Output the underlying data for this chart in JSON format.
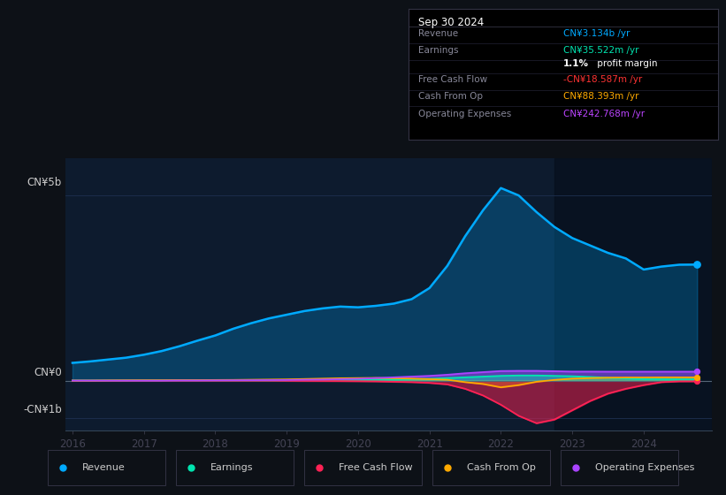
{
  "bg_color": "#0d1117",
  "chart_bg": "#0d1b2e",
  "grid_color": "#1e3050",
  "title_box": {
    "date": "Sep 30 2024",
    "rows": [
      {
        "label": "Revenue",
        "value": "CN¥3.134b /yr",
        "vcolor": "#00aaff"
      },
      {
        "label": "Earnings",
        "value": "CN¥35.522m /yr",
        "vcolor": "#00e5b0"
      },
      {
        "label": "",
        "value": "",
        "vcolor": "#ffffff"
      },
      {
        "label": "Free Cash Flow",
        "value": "-CN¥18.587m /yr",
        "vcolor": "#ff3333"
      },
      {
        "label": "Cash From Op",
        "value": "CN¥88.393m /yr",
        "vcolor": "#ffaa00"
      },
      {
        "label": "Operating Expenses",
        "value": "CN¥242.768m /yr",
        "vcolor": "#bb44ff"
      }
    ]
  },
  "x_years": [
    2016.0,
    2016.25,
    2016.5,
    2016.75,
    2017.0,
    2017.25,
    2017.5,
    2017.75,
    2018.0,
    2018.25,
    2018.5,
    2018.75,
    2019.0,
    2019.25,
    2019.5,
    2019.75,
    2020.0,
    2020.25,
    2020.5,
    2020.75,
    2021.0,
    2021.25,
    2021.5,
    2021.75,
    2022.0,
    2022.25,
    2022.5,
    2022.75,
    2023.0,
    2023.25,
    2023.5,
    2023.75,
    2024.0,
    2024.25,
    2024.5,
    2024.75
  ],
  "revenue": [
    0.48,
    0.52,
    0.57,
    0.62,
    0.7,
    0.8,
    0.93,
    1.08,
    1.22,
    1.4,
    1.55,
    1.68,
    1.78,
    1.88,
    1.95,
    2.0,
    1.98,
    2.02,
    2.08,
    2.2,
    2.5,
    3.1,
    3.9,
    4.6,
    5.2,
    5.0,
    4.55,
    4.15,
    3.85,
    3.65,
    3.45,
    3.3,
    3.0,
    3.08,
    3.13,
    3.134
  ],
  "earnings": [
    0.008,
    0.008,
    0.009,
    0.009,
    0.01,
    0.01,
    0.01,
    0.01,
    0.01,
    0.01,
    0.01,
    0.01,
    0.01,
    0.02,
    0.02,
    0.02,
    0.02,
    0.03,
    0.035,
    0.04,
    0.05,
    0.07,
    0.09,
    0.11,
    0.13,
    0.14,
    0.14,
    0.13,
    0.12,
    0.1,
    0.08,
    0.06,
    0.04,
    0.038,
    0.036,
    0.036
  ],
  "free_cash_flow": [
    0.0,
    0.0,
    0.0,
    0.0,
    0.0,
    0.0,
    0.0,
    0.0,
    0.0,
    0.0,
    0.0,
    0.0,
    -0.005,
    -0.008,
    -0.01,
    -0.012,
    -0.015,
    -0.02,
    -0.03,
    -0.04,
    -0.06,
    -0.1,
    -0.22,
    -0.4,
    -0.65,
    -0.95,
    -1.15,
    -1.05,
    -0.8,
    -0.55,
    -0.35,
    -0.22,
    -0.12,
    -0.04,
    -0.02,
    -0.019
  ],
  "cash_from_op": [
    0.0,
    0.0,
    0.005,
    0.008,
    0.01,
    0.01,
    0.015,
    0.015,
    0.018,
    0.02,
    0.025,
    0.03,
    0.035,
    0.045,
    0.055,
    0.065,
    0.07,
    0.075,
    0.065,
    0.055,
    0.04,
    0.025,
    -0.04,
    -0.09,
    -0.18,
    -0.12,
    -0.03,
    0.02,
    0.055,
    0.07,
    0.08,
    0.085,
    0.085,
    0.088,
    0.088,
    0.088
  ],
  "operating_expenses": [
    0.0,
    0.0,
    0.0,
    0.0,
    0.0,
    0.0,
    0.005,
    0.005,
    0.008,
    0.01,
    0.012,
    0.015,
    0.018,
    0.025,
    0.03,
    0.04,
    0.05,
    0.07,
    0.09,
    0.11,
    0.13,
    0.16,
    0.2,
    0.23,
    0.26,
    0.265,
    0.265,
    0.255,
    0.245,
    0.245,
    0.243,
    0.243,
    0.243,
    0.243,
    0.243,
    0.243
  ],
  "revenue_color": "#00aaff",
  "earnings_color": "#00e5b0",
  "fcf_color": "#ff2255",
  "cashop_color": "#ffaa00",
  "opex_color": "#aa44ff",
  "ylim_min": -1.35,
  "ylim_max": 6.0,
  "zero_y": 0.0,
  "five_y": 5.0,
  "neg1_y": -1.0,
  "xlabel_ticks": [
    2016,
    2017,
    2018,
    2019,
    2020,
    2021,
    2022,
    2023,
    2024
  ],
  "legend": [
    {
      "label": "Revenue",
      "color": "#00aaff"
    },
    {
      "label": "Earnings",
      "color": "#00e5b0"
    },
    {
      "label": "Free Cash Flow",
      "color": "#ff2255"
    },
    {
      "label": "Cash From Op",
      "color": "#ffaa00"
    },
    {
      "label": "Operating Expenses",
      "color": "#aa44ff"
    }
  ]
}
